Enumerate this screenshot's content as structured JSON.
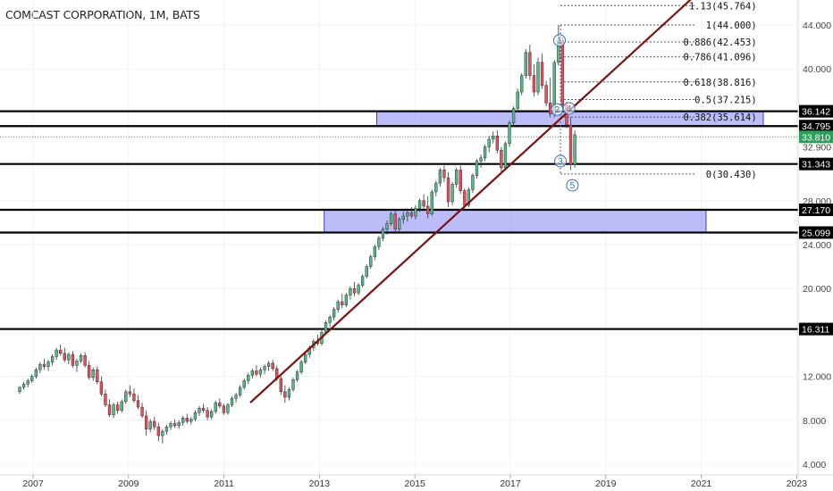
{
  "header": {
    "title": "COMCAST CORPORATION, 1M, BATS"
  },
  "chart_data": {
    "type": "candlestick",
    "ylim": [
      4,
      47
    ],
    "xlim": [
      2006.6,
      2023.0
    ],
    "y_ticks": [
      {
        "value": 44,
        "label": "44.000"
      },
      {
        "value": 40,
        "label": "40.000"
      },
      {
        "value": 28,
        "label": "28.000"
      },
      {
        "value": 24,
        "label": "24.000"
      },
      {
        "value": 20,
        "label": "20.000"
      },
      {
        "value": 12,
        "label": "12.000"
      },
      {
        "value": 8,
        "label": "8.000"
      },
      {
        "value": 4,
        "label": "4.000"
      }
    ],
    "x_ticks": [
      {
        "value": 2007,
        "label": "2007"
      },
      {
        "value": 2009,
        "label": "2009"
      },
      {
        "value": 2011,
        "label": "2011"
      },
      {
        "value": 2013,
        "label": "2013"
      },
      {
        "value": 2015,
        "label": "2015"
      },
      {
        "value": 2017,
        "label": "2017"
      },
      {
        "value": 2019,
        "label": "2019"
      },
      {
        "value": 2021,
        "label": "2021"
      },
      {
        "value": 2023,
        "label": "2023"
      }
    ],
    "horizontal_levels": [
      {
        "value": 36.142,
        "label": "36.142"
      },
      {
        "value": 34.795,
        "label": "34.795"
      },
      {
        "value": 31.343,
        "label": "31.343"
      },
      {
        "value": 27.17,
        "label": "27.170"
      },
      {
        "value": 25.099,
        "label": "25.099"
      },
      {
        "value": 16.311,
        "label": "16.311"
      }
    ],
    "last_price": {
      "value": 33.81,
      "label": "33.810",
      "color": "#2e9e5b"
    },
    "hidden_price_label": {
      "value": 32.9,
      "label": "32.900"
    },
    "zones": [
      {
        "from_x": 2014.2,
        "to_x": 2022.3,
        "low": 34.795,
        "high": 36.142,
        "color": "#6b6bf0"
      },
      {
        "from_x": 2013.1,
        "to_x": 2021.1,
        "low": 25.099,
        "high": 27.17,
        "color": "#6b6bf0"
      }
    ],
    "trendline": {
      "x1": 2011.55,
      "y1": 9.6,
      "x2": 2021.0,
      "y2": 47.2,
      "color": "#7a1010"
    },
    "fibonacci": {
      "x_start": 2018.05,
      "x_end": 2022.2,
      "levels": [
        {
          "value": 45.764,
          "label": "1.13(45.764)"
        },
        {
          "value": 44.0,
          "label": "1(44.000)"
        },
        {
          "value": 42.453,
          "label": "0.886(42.453)"
        },
        {
          "value": 41.096,
          "label": "0.786(41.096)"
        },
        {
          "value": 38.816,
          "label": "0.618(38.816)"
        },
        {
          "value": 37.215,
          "label": "0.5(37.215)"
        },
        {
          "value": 35.614,
          "label": "0.382(35.614)"
        },
        {
          "value": 30.43,
          "label": "0(30.430)"
        }
      ]
    },
    "wave_labels": [
      {
        "label": "1",
        "x": 2018.03,
        "y": 42.6
      },
      {
        "label": "2",
        "x": 2017.98,
        "y": 36.3
      },
      {
        "label": "4",
        "x": 2018.23,
        "y": 36.4
      },
      {
        "label": "3",
        "x": 2018.05,
        "y": 31.6
      },
      {
        "label": "5",
        "x": 2018.3,
        "y": 29.4
      }
    ],
    "candles": [
      {
        "o": 10.6,
        "h": 11.1,
        "l": 10.4,
        "c": 11.0
      },
      {
        "o": 11.0,
        "h": 11.5,
        "l": 10.8,
        "c": 11.3
      },
      {
        "o": 11.3,
        "h": 11.8,
        "l": 11.0,
        "c": 11.6
      },
      {
        "o": 11.6,
        "h": 12.2,
        "l": 11.4,
        "c": 12.0
      },
      {
        "o": 12.0,
        "h": 12.8,
        "l": 11.8,
        "c": 12.6
      },
      {
        "o": 12.6,
        "h": 13.3,
        "l": 12.3,
        "c": 13.1
      },
      {
        "o": 13.1,
        "h": 13.6,
        "l": 12.6,
        "c": 12.9
      },
      {
        "o": 12.9,
        "h": 13.5,
        "l": 12.5,
        "c": 13.3
      },
      {
        "o": 13.3,
        "h": 14.0,
        "l": 13.0,
        "c": 13.8
      },
      {
        "o": 13.8,
        "h": 14.6,
        "l": 13.5,
        "c": 14.4
      },
      {
        "o": 14.4,
        "h": 14.9,
        "l": 13.9,
        "c": 14.1
      },
      {
        "o": 14.1,
        "h": 14.6,
        "l": 13.3,
        "c": 13.5
      },
      {
        "o": 13.5,
        "h": 14.2,
        "l": 13.1,
        "c": 14.0
      },
      {
        "o": 14.0,
        "h": 14.3,
        "l": 12.8,
        "c": 13.0
      },
      {
        "o": 13.0,
        "h": 13.6,
        "l": 12.4,
        "c": 13.4
      },
      {
        "o": 13.4,
        "h": 14.1,
        "l": 13.2,
        "c": 13.9
      },
      {
        "o": 13.9,
        "h": 14.2,
        "l": 12.8,
        "c": 13.0
      },
      {
        "o": 13.0,
        "h": 13.4,
        "l": 11.7,
        "c": 11.9
      },
      {
        "o": 11.9,
        "h": 12.8,
        "l": 11.6,
        "c": 12.6
      },
      {
        "o": 12.6,
        "h": 12.9,
        "l": 11.3,
        "c": 11.5
      },
      {
        "o": 11.5,
        "h": 12.0,
        "l": 10.2,
        "c": 10.4
      },
      {
        "o": 10.4,
        "h": 10.8,
        "l": 9.2,
        "c": 9.4
      },
      {
        "o": 9.4,
        "h": 9.9,
        "l": 8.3,
        "c": 8.5
      },
      {
        "o": 8.5,
        "h": 9.6,
        "l": 8.2,
        "c": 9.4
      },
      {
        "o": 9.4,
        "h": 9.7,
        "l": 8.6,
        "c": 8.9
      },
      {
        "o": 8.9,
        "h": 9.9,
        "l": 8.7,
        "c": 9.7
      },
      {
        "o": 9.7,
        "h": 10.8,
        "l": 9.5,
        "c": 10.6
      },
      {
        "o": 10.6,
        "h": 11.2,
        "l": 10.1,
        "c": 10.4
      },
      {
        "o": 10.4,
        "h": 10.9,
        "l": 9.6,
        "c": 9.8
      },
      {
        "o": 9.8,
        "h": 10.3,
        "l": 9.0,
        "c": 9.2
      },
      {
        "o": 9.2,
        "h": 9.6,
        "l": 8.2,
        "c": 8.4
      },
      {
        "o": 8.4,
        "h": 8.9,
        "l": 6.6,
        "c": 7.2
      },
      {
        "o": 7.2,
        "h": 8.1,
        "l": 6.9,
        "c": 7.9
      },
      {
        "o": 7.9,
        "h": 8.3,
        "l": 7.1,
        "c": 7.4
      },
      {
        "o": 7.4,
        "h": 7.8,
        "l": 6.1,
        "c": 6.6
      },
      {
        "o": 6.6,
        "h": 7.2,
        "l": 5.9,
        "c": 7.0
      },
      {
        "o": 7.0,
        "h": 7.6,
        "l": 6.7,
        "c": 7.4
      },
      {
        "o": 7.4,
        "h": 7.9,
        "l": 7.1,
        "c": 7.7
      },
      {
        "o": 7.7,
        "h": 8.1,
        "l": 7.3,
        "c": 7.5
      },
      {
        "o": 7.5,
        "h": 8.0,
        "l": 7.2,
        "c": 7.8
      },
      {
        "o": 7.8,
        "h": 8.4,
        "l": 7.5,
        "c": 8.2
      },
      {
        "o": 8.2,
        "h": 8.6,
        "l": 7.7,
        "c": 7.9
      },
      {
        "o": 7.9,
        "h": 8.3,
        "l": 7.6,
        "c": 8.1
      },
      {
        "o": 8.1,
        "h": 8.9,
        "l": 7.9,
        "c": 8.7
      },
      {
        "o": 8.7,
        "h": 9.3,
        "l": 8.4,
        "c": 9.1
      },
      {
        "o": 9.1,
        "h": 9.5,
        "l": 8.7,
        "c": 8.9
      },
      {
        "o": 8.9,
        "h": 9.2,
        "l": 8.0,
        "c": 8.3
      },
      {
        "o": 8.3,
        "h": 9.0,
        "l": 8.1,
        "c": 8.8
      },
      {
        "o": 8.8,
        "h": 9.8,
        "l": 8.6,
        "c": 9.6
      },
      {
        "o": 9.6,
        "h": 10.0,
        "l": 9.1,
        "c": 9.3
      },
      {
        "o": 9.3,
        "h": 9.5,
        "l": 8.5,
        "c": 8.7
      },
      {
        "o": 8.7,
        "h": 9.6,
        "l": 8.5,
        "c": 9.4
      },
      {
        "o": 9.4,
        "h": 10.2,
        "l": 9.2,
        "c": 10.0
      },
      {
        "o": 10.0,
        "h": 10.5,
        "l": 9.6,
        "c": 10.3
      },
      {
        "o": 10.3,
        "h": 11.2,
        "l": 10.1,
        "c": 11.0
      },
      {
        "o": 11.0,
        "h": 11.8,
        "l": 10.8,
        "c": 11.6
      },
      {
        "o": 11.6,
        "h": 12.3,
        "l": 11.3,
        "c": 12.1
      },
      {
        "o": 12.1,
        "h": 12.7,
        "l": 11.8,
        "c": 12.5
      },
      {
        "o": 12.5,
        "h": 13.0,
        "l": 12.0,
        "c": 12.2
      },
      {
        "o": 12.2,
        "h": 12.8,
        "l": 11.9,
        "c": 12.6
      },
      {
        "o": 12.6,
        "h": 13.1,
        "l": 12.2,
        "c": 12.9
      },
      {
        "o": 12.9,
        "h": 13.4,
        "l": 12.5,
        "c": 13.2
      },
      {
        "o": 13.2,
        "h": 13.5,
        "l": 12.5,
        "c": 12.7
      },
      {
        "o": 12.7,
        "h": 13.0,
        "l": 11.6,
        "c": 11.8
      },
      {
        "o": 11.8,
        "h": 12.0,
        "l": 10.3,
        "c": 10.6
      },
      {
        "o": 10.6,
        "h": 11.2,
        "l": 9.6,
        "c": 10.1
      },
      {
        "o": 10.1,
        "h": 11.0,
        "l": 9.8,
        "c": 10.8
      },
      {
        "o": 10.8,
        "h": 11.9,
        "l": 10.6,
        "c": 11.7
      },
      {
        "o": 11.7,
        "h": 12.6,
        "l": 11.5,
        "c": 12.4
      },
      {
        "o": 12.4,
        "h": 13.5,
        "l": 12.2,
        "c": 13.3
      },
      {
        "o": 13.3,
        "h": 14.2,
        "l": 13.1,
        "c": 14.0
      },
      {
        "o": 14.0,
        "h": 14.8,
        "l": 13.7,
        "c": 14.6
      },
      {
        "o": 14.6,
        "h": 15.4,
        "l": 14.3,
        "c": 15.2
      },
      {
        "o": 15.2,
        "h": 15.8,
        "l": 14.8,
        "c": 15.0
      },
      {
        "o": 15.0,
        "h": 16.2,
        "l": 14.8,
        "c": 16.0
      },
      {
        "o": 16.0,
        "h": 17.1,
        "l": 15.8,
        "c": 16.9
      },
      {
        "o": 16.9,
        "h": 17.6,
        "l": 16.5,
        "c": 17.4
      },
      {
        "o": 17.4,
        "h": 18.3,
        "l": 17.1,
        "c": 18.1
      },
      {
        "o": 18.1,
        "h": 19.0,
        "l": 17.8,
        "c": 18.8
      },
      {
        "o": 18.8,
        "h": 19.5,
        "l": 18.2,
        "c": 18.5
      },
      {
        "o": 18.5,
        "h": 19.6,
        "l": 18.3,
        "c": 19.4
      },
      {
        "o": 19.4,
        "h": 20.2,
        "l": 19.0,
        "c": 20.0
      },
      {
        "o": 20.0,
        "h": 20.6,
        "l": 19.3,
        "c": 19.6
      },
      {
        "o": 19.6,
        "h": 20.5,
        "l": 19.4,
        "c": 20.3
      },
      {
        "o": 20.3,
        "h": 21.3,
        "l": 20.1,
        "c": 21.1
      },
      {
        "o": 21.1,
        "h": 22.2,
        "l": 20.9,
        "c": 22.0
      },
      {
        "o": 22.0,
        "h": 23.1,
        "l": 21.8,
        "c": 22.9
      },
      {
        "o": 22.9,
        "h": 24.0,
        "l": 22.6,
        "c": 23.8
      },
      {
        "o": 23.8,
        "h": 24.8,
        "l": 23.5,
        "c": 24.6
      },
      {
        "o": 24.6,
        "h": 25.6,
        "l": 24.3,
        "c": 25.4
      },
      {
        "o": 25.4,
        "h": 26.2,
        "l": 24.9,
        "c": 25.9
      },
      {
        "o": 25.9,
        "h": 27.0,
        "l": 25.7,
        "c": 26.8
      },
      {
        "o": 26.8,
        "h": 27.2,
        "l": 25.1,
        "c": 25.4
      },
      {
        "o": 25.4,
        "h": 26.5,
        "l": 25.0,
        "c": 26.3
      },
      {
        "o": 26.3,
        "h": 27.0,
        "l": 25.9,
        "c": 26.6
      },
      {
        "o": 26.6,
        "h": 27.3,
        "l": 26.1,
        "c": 26.9
      },
      {
        "o": 26.9,
        "h": 27.4,
        "l": 26.4,
        "c": 26.6
      },
      {
        "o": 26.6,
        "h": 27.6,
        "l": 26.3,
        "c": 27.3
      },
      {
        "o": 27.3,
        "h": 28.2,
        "l": 27.0,
        "c": 28.0
      },
      {
        "o": 28.0,
        "h": 28.6,
        "l": 27.2,
        "c": 27.5
      },
      {
        "o": 27.5,
        "h": 28.4,
        "l": 26.4,
        "c": 26.8
      },
      {
        "o": 26.8,
        "h": 29.0,
        "l": 26.6,
        "c": 28.8
      },
      {
        "o": 28.8,
        "h": 29.8,
        "l": 28.4,
        "c": 29.6
      },
      {
        "o": 29.6,
        "h": 31.0,
        "l": 29.3,
        "c": 30.8
      },
      {
        "o": 30.8,
        "h": 31.2,
        "l": 29.7,
        "c": 30.1
      },
      {
        "o": 30.1,
        "h": 30.6,
        "l": 27.4,
        "c": 27.9
      },
      {
        "o": 27.9,
        "h": 29.7,
        "l": 27.6,
        "c": 29.5
      },
      {
        "o": 29.5,
        "h": 31.0,
        "l": 29.2,
        "c": 30.8
      },
      {
        "o": 30.8,
        "h": 31.2,
        "l": 28.6,
        "c": 28.9
      },
      {
        "o": 28.9,
        "h": 29.1,
        "l": 27.3,
        "c": 27.6
      },
      {
        "o": 27.6,
        "h": 29.2,
        "l": 27.4,
        "c": 29.0
      },
      {
        "o": 29.0,
        "h": 30.5,
        "l": 28.7,
        "c": 30.3
      },
      {
        "o": 30.3,
        "h": 31.8,
        "l": 30.0,
        "c": 31.6
      },
      {
        "o": 31.6,
        "h": 32.2,
        "l": 31.0,
        "c": 31.9
      },
      {
        "o": 31.9,
        "h": 33.1,
        "l": 31.6,
        "c": 32.9
      },
      {
        "o": 32.9,
        "h": 33.9,
        "l": 32.4,
        "c": 33.6
      },
      {
        "o": 33.6,
        "h": 34.3,
        "l": 33.2,
        "c": 33.9
      },
      {
        "o": 33.9,
        "h": 34.4,
        "l": 32.3,
        "c": 32.6
      },
      {
        "o": 32.6,
        "h": 32.9,
        "l": 30.6,
        "c": 31.0
      },
      {
        "o": 31.0,
        "h": 33.4,
        "l": 30.8,
        "c": 33.2
      },
      {
        "o": 33.2,
        "h": 35.3,
        "l": 32.9,
        "c": 35.1
      },
      {
        "o": 35.1,
        "h": 36.6,
        "l": 34.8,
        "c": 36.4
      },
      {
        "o": 36.4,
        "h": 38.2,
        "l": 36.1,
        "c": 37.9
      },
      {
        "o": 37.9,
        "h": 39.6,
        "l": 37.6,
        "c": 39.4
      },
      {
        "o": 39.4,
        "h": 41.8,
        "l": 39.1,
        "c": 41.5
      },
      {
        "o": 41.5,
        "h": 42.2,
        "l": 39.0,
        "c": 39.4
      },
      {
        "o": 39.4,
        "h": 40.4,
        "l": 37.5,
        "c": 37.9
      },
      {
        "o": 37.9,
        "h": 41.0,
        "l": 37.6,
        "c": 40.6
      },
      {
        "o": 40.6,
        "h": 41.4,
        "l": 38.2,
        "c": 38.5
      },
      {
        "o": 38.5,
        "h": 38.9,
        "l": 36.6,
        "c": 36.9
      },
      {
        "o": 36.9,
        "h": 39.2,
        "l": 35.6,
        "c": 35.9
      },
      {
        "o": 35.9,
        "h": 40.8,
        "l": 35.6,
        "c": 40.6
      },
      {
        "o": 40.6,
        "h": 44.0,
        "l": 40.3,
        "c": 42.6
      },
      {
        "o": 42.6,
        "h": 42.9,
        "l": 36.4,
        "c": 36.7
      },
      {
        "o": 36.7,
        "h": 37.0,
        "l": 34.6,
        "c": 34.9
      },
      {
        "o": 34.9,
        "h": 35.6,
        "l": 30.8,
        "c": 31.3
      },
      {
        "o": 31.3,
        "h": 34.4,
        "l": 31.0,
        "c": 34.0
      }
    ]
  }
}
